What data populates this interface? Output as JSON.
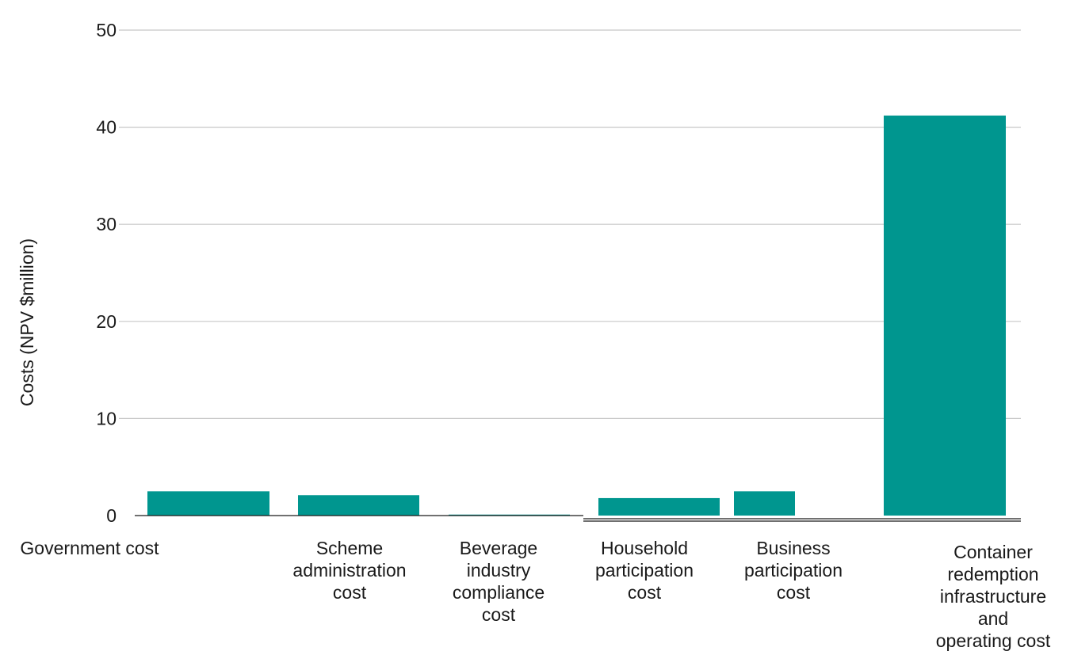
{
  "chart_data": {
    "type": "bar",
    "ylabel": "Costs (NPV $million)",
    "xlabel": "",
    "title": "",
    "ylim": [
      0,
      50
    ],
    "yticks": [
      0,
      10,
      20,
      30,
      40,
      50
    ],
    "grid": true,
    "categories": [
      "Government cost",
      "Scheme administration cost",
      "Beverage industry compliance cost",
      "Household participation cost",
      "Business participation cost",
      "Container redemption infrastructure and operating cost"
    ],
    "category_lines": [
      [
        "Government cost"
      ],
      [
        "Scheme",
        "administration",
        "cost"
      ],
      [
        "Beverage",
        "industry",
        "compliance",
        "cost"
      ],
      [
        "Household",
        "participation",
        "cost"
      ],
      [
        "Business",
        "participation",
        "cost"
      ],
      [
        "Container",
        "redemption",
        "infrastructure",
        "and",
        "operating cost"
      ]
    ],
    "values": [
      2.5,
      2.1,
      0.1,
      1.8,
      2.5,
      41.2
    ],
    "bar_color": "#00968f",
    "grid_color": "#c8c8c8",
    "axis_color": "#1a1a1a"
  }
}
